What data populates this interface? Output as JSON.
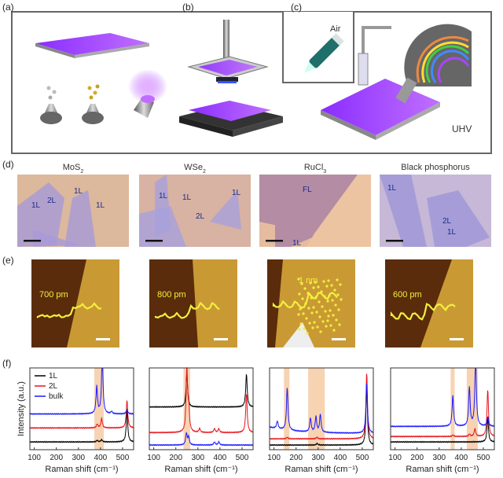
{
  "panel_labels": {
    "a": "(a)",
    "b": "(b)",
    "c": "(c)",
    "d": "(d)",
    "e": "(e)",
    "f": "(f)"
  },
  "top": {
    "air_label": "Air",
    "uhv_label": "UHV"
  },
  "optical": [
    {
      "material": "MoS",
      "sub": "2",
      "flakes": [
        "1L",
        "2L",
        "1L",
        "1L"
      ]
    },
    {
      "material": "WSe",
      "sub": "2",
      "flakes": [
        "1L",
        "1L",
        "1L",
        "2L"
      ]
    },
    {
      "material": "RuCl",
      "sub": "3",
      "flakes": [
        "FL",
        "1L"
      ]
    },
    {
      "material": "Black phosphorus",
      "sub": "",
      "flakes": [
        "1L",
        "2L",
        "1L"
      ]
    }
  ],
  "afm": [
    {
      "height_label": "700 pm"
    },
    {
      "height_label": "800 pm"
    },
    {
      "height_label": "1 nm"
    },
    {
      "height_label": "600 pm"
    }
  ],
  "colors": {
    "1L": "#000000",
    "2L": "#e8141c",
    "bulk": "#1a1aff",
    "band": "#f7d3b2",
    "afm_dark": "#5a2c0c",
    "afm_light": "#c99a34",
    "profile": "#f2f03c"
  },
  "chart_data": [
    {
      "type": "line",
      "xlabel": "Raman shift (cm⁻¹)",
      "ylabel": "Intensity (a.u.)",
      "xlim": [
        80,
        550
      ],
      "xticks": [
        100,
        200,
        300,
        400,
        500
      ],
      "legend": {
        "placement": "top-left",
        "entries": [
          "1L",
          "2L",
          "bulk"
        ]
      },
      "highlight_bands": [
        [
          372,
          415
        ]
      ],
      "series": [
        {
          "name": "1L",
          "baseline": 0.1,
          "peaks": [
            [
              385,
              0.02
            ],
            [
              405,
              0.03
            ],
            [
              520,
              0.4
            ]
          ]
        },
        {
          "name": "2L",
          "baseline": 0.28,
          "peaks": [
            [
              385,
              0.05
            ],
            [
              405,
              0.12
            ],
            [
              520,
              0.35
            ]
          ]
        },
        {
          "name": "bulk",
          "baseline": 0.46,
          "peaks": [
            [
              383,
              0.35
            ],
            [
              408,
              0.75
            ],
            [
              450,
              0.03
            ],
            [
              520,
              0.06
            ]
          ]
        }
      ]
    },
    {
      "type": "line",
      "xlabel": "Raman shift (cm⁻¹)",
      "ylabel": "",
      "xlim": [
        80,
        550
      ],
      "xticks": [
        100,
        200,
        300,
        400,
        500
      ],
      "highlight_bands": [
        [
          235,
          265
        ]
      ],
      "series": [
        {
          "name": "1L",
          "baseline": 0.55,
          "peaks": [
            [
              250,
              0.45
            ],
            [
              520,
              0.42
            ]
          ]
        },
        {
          "name": "2L",
          "baseline": 0.22,
          "peaks": [
            [
              250,
              0.8
            ],
            [
              258,
              0.3
            ],
            [
              308,
              0.05
            ],
            [
              375,
              0.05
            ],
            [
              395,
              0.05
            ],
            [
              520,
              0.5
            ]
          ]
        },
        {
          "name": "bulk",
          "baseline": 0.06,
          "peaks": [
            [
              248,
              0.15
            ],
            [
              258,
              0.1
            ],
            [
              375,
              0.04
            ],
            [
              395,
              0.04
            ]
          ]
        }
      ]
    },
    {
      "type": "line",
      "xlabel": "Raman shift (cm⁻¹)",
      "ylabel": "",
      "xlim": [
        80,
        550
      ],
      "xticks": [
        100,
        200,
        300,
        400,
        500
      ],
      "highlight_bands": [
        [
          145,
          170
        ],
        [
          255,
          330
        ]
      ],
      "series": [
        {
          "name": "1L",
          "baseline": 0.06,
          "peaks": [
            [
              295,
              0.02
            ],
            [
              520,
              0.75
            ]
          ]
        },
        {
          "name": "2L",
          "baseline": 0.14,
          "peaks": [
            [
              160,
              0.02
            ],
            [
              295,
              0.02
            ],
            [
              520,
              0.85
            ]
          ]
        },
        {
          "name": "bulk",
          "baseline": 0.25,
          "peaks": [
            [
              115,
              0.1
            ],
            [
              160,
              0.55
            ],
            [
              265,
              0.18
            ],
            [
              290,
              0.2
            ],
            [
              310,
              0.23
            ],
            [
              520,
              0.65
            ]
          ]
        }
      ]
    },
    {
      "type": "line",
      "xlabel": "Raman shift (cm⁻¹)",
      "ylabel": "",
      "xlim": [
        80,
        550
      ],
      "xticks": [
        100,
        200,
        300,
        400,
        500
      ],
      "highlight_bands": [
        [
          352,
          370
        ],
        [
          425,
          475
        ]
      ],
      "series": [
        {
          "name": "1L",
          "baseline": 0.1,
          "peaks": [
            [
              520,
              0.3
            ]
          ]
        },
        {
          "name": "2L",
          "baseline": 0.17,
          "peaks": [
            [
              362,
              0.02
            ],
            [
              437,
              0.03
            ],
            [
              462,
              0.1
            ],
            [
              520,
              0.6
            ]
          ]
        },
        {
          "name": "bulk",
          "baseline": 0.3,
          "peaks": [
            [
              362,
              0.4
            ],
            [
              437,
              0.5
            ],
            [
              465,
              0.9
            ],
            [
              520,
              0.12
            ]
          ]
        }
      ]
    }
  ]
}
